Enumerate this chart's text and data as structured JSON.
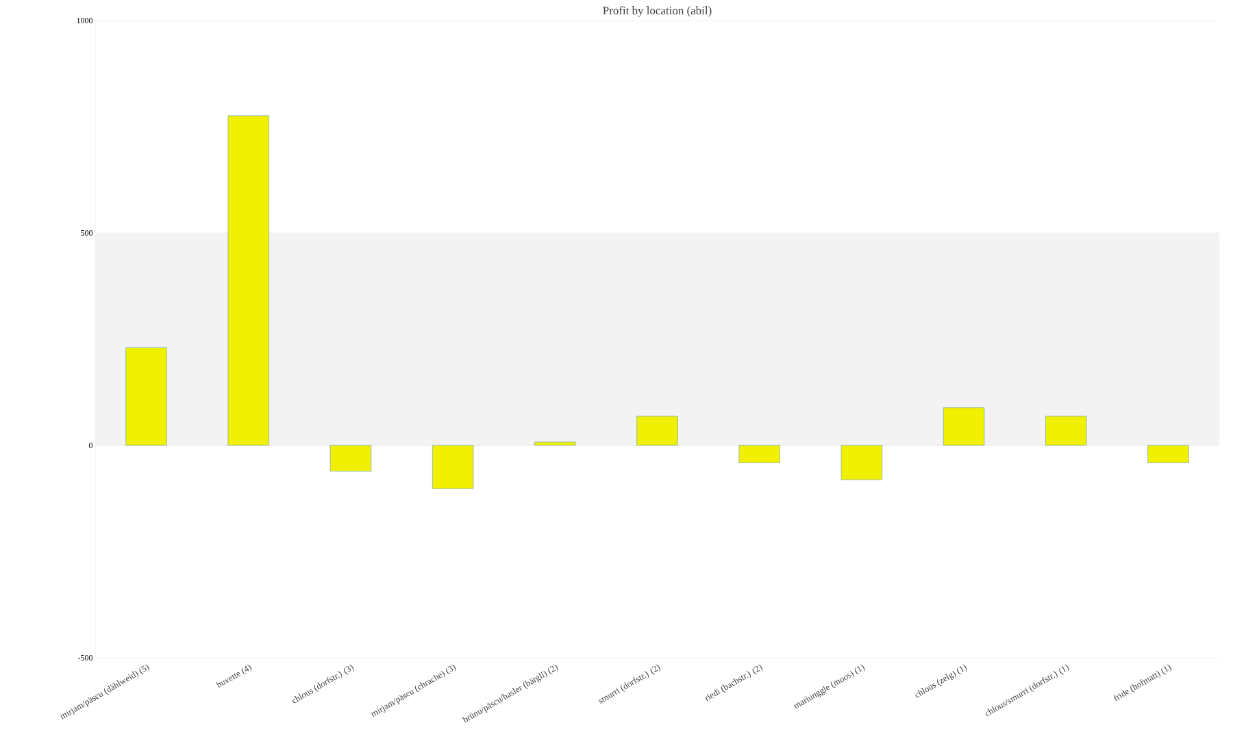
{
  "chart_data": {
    "type": "bar",
    "title": "Profit by location  (abil)",
    "categories": [
      "mirjam/päscu (dählweid) (5)",
      "buvette (4)",
      "chlous (dorfstr.) (3)",
      "mirjam/päscu (chrache) (3)",
      "brünu/päscu/hasler (bärgli) (2)",
      "smurri (dorfstr.) (2)",
      "riedi (bachstr.) (2)",
      "mariunggle (moos) (1)",
      "chlous (zelg) (1)",
      "chlous/smurri (dorfstr.) (1)",
      "fride (hofmatt) (1)"
    ],
    "values": [
      230,
      776,
      -61,
      -102,
      8,
      69,
      -41,
      -81,
      89,
      69,
      -41
    ],
    "color": "#f0f000",
    "ylim": [
      -500,
      1000
    ],
    "yticks": [
      -500,
      0,
      500,
      1000
    ],
    "grid": "y",
    "bands": [
      {
        "axis": "y",
        "from": 0,
        "to": 500,
        "color": "#f3f3f3"
      }
    ]
  }
}
